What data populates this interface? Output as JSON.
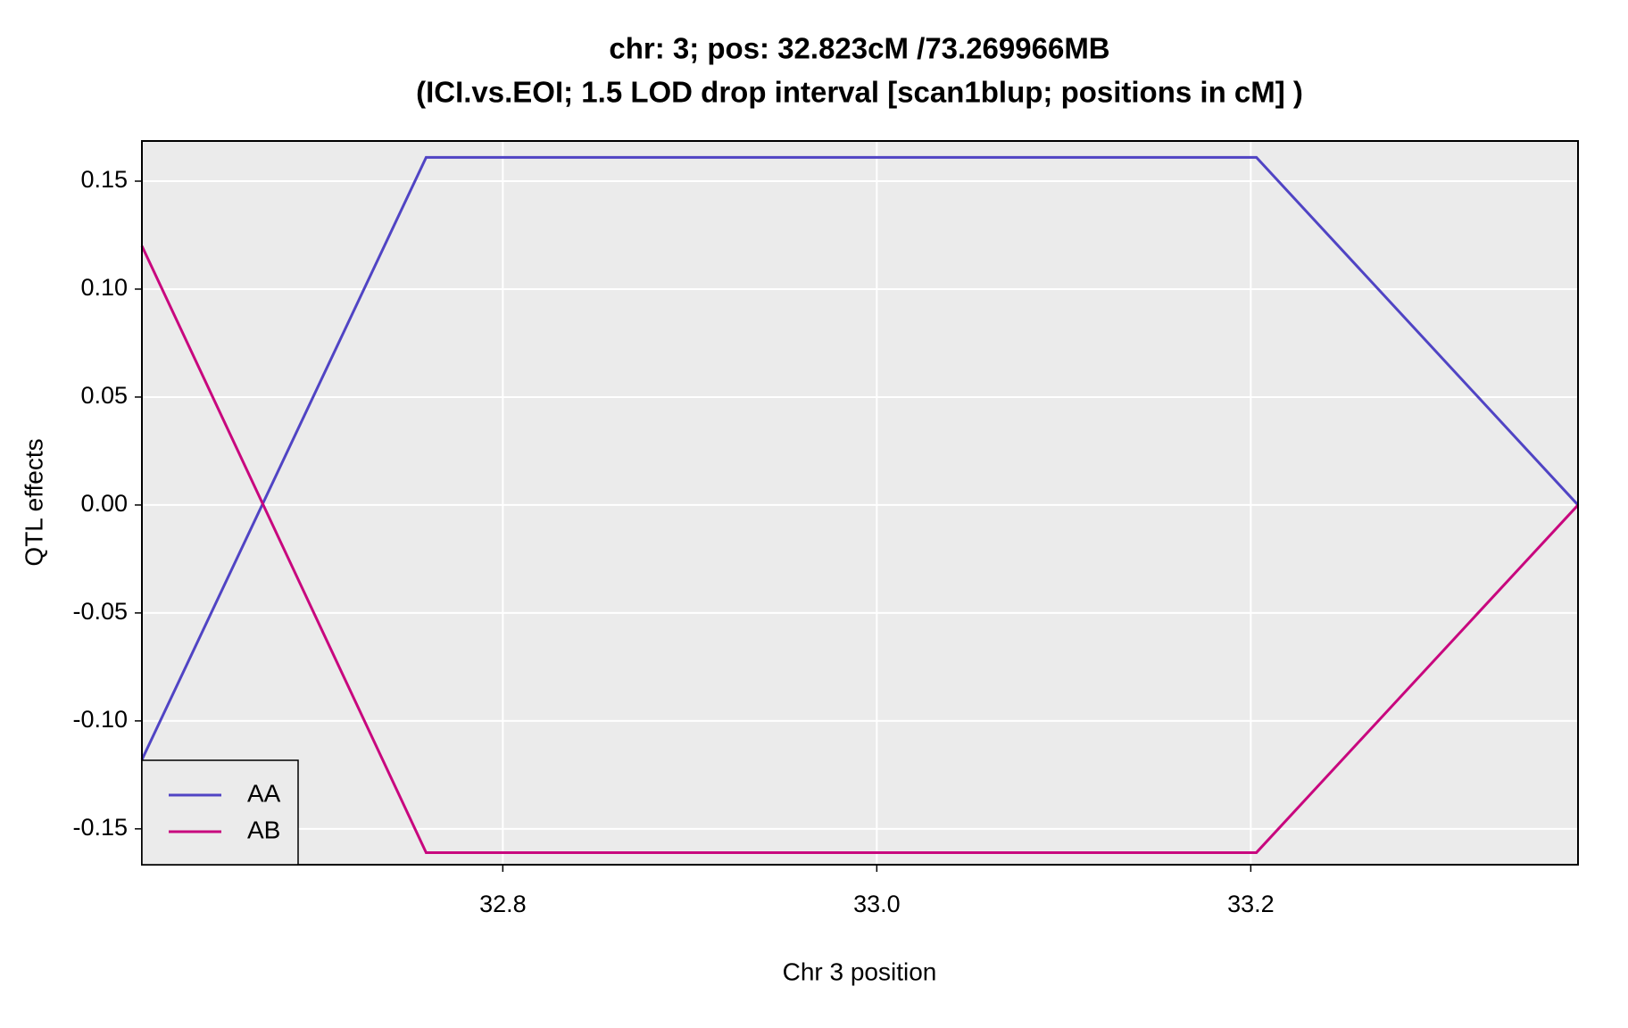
{
  "chart_data": {
    "type": "line",
    "title": "chr: 3; pos: 32.823cM /73.269966MB",
    "subtitle": "(ICI.vs.EOI; 1.5 LOD drop interval [scan1blup; positions in cM] )",
    "x_label": "Chr 3 position",
    "y_label": "QTL effects",
    "x": [
      32.607,
      32.759,
      33.203,
      33.375
    ],
    "series": [
      {
        "name": "AA",
        "color": "#5044c4",
        "values": [
          -0.118,
          0.161,
          0.161,
          0.0
        ]
      },
      {
        "name": "AB",
        "color": "#c8077e",
        "values": [
          0.12,
          -0.161,
          -0.161,
          0.0
        ]
      }
    ],
    "xlim": [
      32.607,
      33.375
    ],
    "ylim": [
      -0.1666,
      0.1686
    ],
    "xticks": [
      32.8,
      {
        "value": 33.0,
        "label": "33.0"
      },
      33.2
    ],
    "yticks": [
      0.15,
      {
        "value": 0.1,
        "label": "0.10"
      },
      0.05,
      {
        "value": 0,
        "label": "0.00"
      },
      -0.05,
      {
        "value": -0.1,
        "label": "-0.10"
      },
      -0.15
    ],
    "grid": true,
    "legend_position": "bottom-left"
  }
}
